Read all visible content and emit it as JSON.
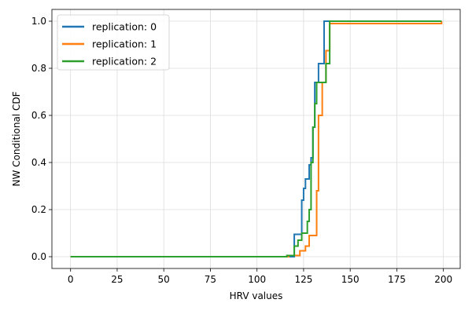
{
  "chart_data": {
    "type": "line",
    "step": true,
    "xlabel": "HRV values",
    "ylabel": "NW Conditional CDF",
    "xlim": [
      -10,
      209
    ],
    "ylim": [
      -0.05,
      1.05
    ],
    "xticks": [
      0,
      25,
      50,
      75,
      100,
      125,
      150,
      175,
      200
    ],
    "yticks": [
      0.0,
      0.2,
      0.4,
      0.6,
      0.8,
      1.0
    ],
    "xtick_labels": [
      "0",
      "25",
      "50",
      "75",
      "100",
      "125",
      "150",
      "175",
      "200"
    ],
    "ytick_labels": [
      "0.0",
      "0.2",
      "0.4",
      "0.6",
      "0.8",
      "1.0"
    ],
    "grid": true,
    "legend_position": "upper-left",
    "series": [
      {
        "name": "replication: 0",
        "color": "#1f77b4",
        "x": [
          0,
          120,
          124,
          125,
          126,
          128,
          129,
          130,
          131,
          133,
          136,
          199
        ],
        "y": [
          0.0,
          0.095,
          0.24,
          0.29,
          0.33,
          0.39,
          0.42,
          0.55,
          0.74,
          0.82,
          1.0,
          1.0
        ]
      },
      {
        "name": "replication: 1",
        "color": "#ff7f0e",
        "x": [
          0,
          117,
          123,
          126,
          128,
          129,
          132,
          133,
          135,
          137,
          139,
          199
        ],
        "y": [
          0.0,
          0.005,
          0.025,
          0.045,
          0.09,
          0.09,
          0.28,
          0.6,
          0.74,
          0.875,
          0.99,
          1.0
        ]
      },
      {
        "name": "replication: 2",
        "color": "#2ca02c",
        "x": [
          0,
          116,
          120,
          122,
          124,
          127,
          128,
          129,
          130,
          131,
          132,
          136,
          137,
          139,
          199
        ],
        "y": [
          0.0,
          0.005,
          0.045,
          0.07,
          0.1,
          0.15,
          0.2,
          0.4,
          0.55,
          0.65,
          0.74,
          0.74,
          0.82,
          1.0,
          1.0
        ]
      }
    ]
  }
}
